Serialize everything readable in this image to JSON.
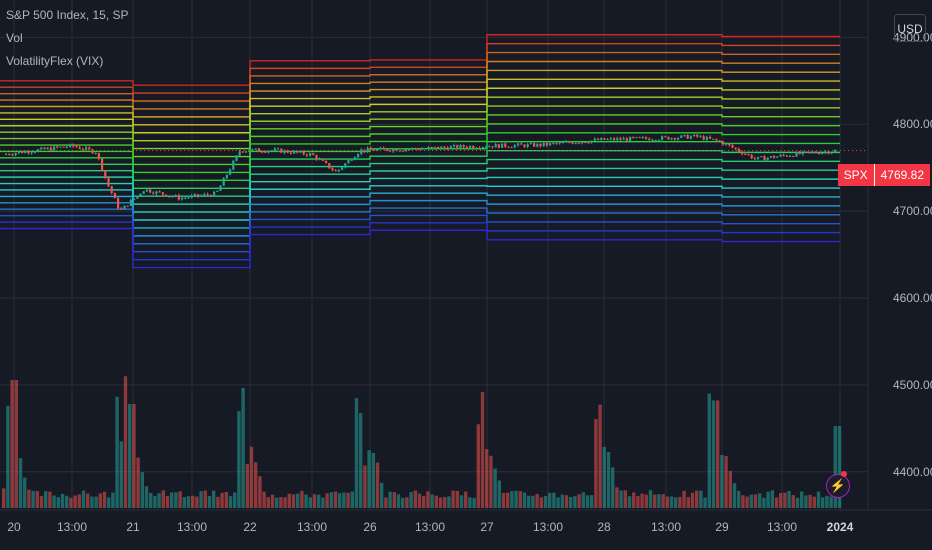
{
  "legend": {
    "symbol": "S&P 500 Index, 15, SP",
    "vol": "Vol",
    "indicator": "VolatilityFlex (VIX)"
  },
  "currency_button": "USD",
  "price_tag": {
    "symbol": "SPX",
    "value": "4769.82"
  },
  "chart_data": {
    "type": "line",
    "title": "S&P 500 Index, 15, SP",
    "y_ticks": [
      "4900.00",
      "4800.00",
      "4700.00",
      "4600.00",
      "4500.00",
      "4400.00"
    ],
    "y_tick_values": [
      4900,
      4800,
      4700,
      4600,
      4500,
      4400
    ],
    "ylim": [
      4356,
      4943
    ],
    "x_ticks": [
      "20",
      "13:00",
      "21",
      "13:00",
      "22",
      "13:00",
      "26",
      "13:00",
      "27",
      "13:00",
      "28",
      "13:00",
      "29",
      "13:00",
      "2024"
    ],
    "grid": true,
    "last_price": 4769.82,
    "sessions": [
      {
        "label": "20",
        "center": 4765,
        "half_width": 85
      },
      {
        "label": "21",
        "center": 4740,
        "half_width": 105
      },
      {
        "label": "22",
        "center": 4773,
        "half_width": 100
      },
      {
        "label": "26",
        "center": 4776,
        "half_width": 98
      },
      {
        "label": "27",
        "center": 4785,
        "half_width": 118
      },
      {
        "label": "28",
        "center": 4785,
        "half_width": 118
      },
      {
        "label": "29",
        "center": 4783,
        "half_width": 118
      }
    ],
    "price_path": [
      [
        0,
        4765
      ],
      [
        0.3,
        4770
      ],
      [
        0.6,
        4775
      ],
      [
        0.8,
        4768
      ],
      [
        0.9,
        4730
      ],
      [
        1.0,
        4700
      ],
      [
        1.2,
        4725
      ],
      [
        1.5,
        4715
      ],
      [
        1.8,
        4720
      ],
      [
        2.0,
        4770
      ],
      [
        2.3,
        4770
      ],
      [
        2.6,
        4765
      ],
      [
        2.8,
        4745
      ],
      [
        3.0,
        4770
      ],
      [
        3.5,
        4772
      ],
      [
        4.0,
        4775
      ],
      [
        4.5,
        4776
      ],
      [
        5.0,
        4782
      ],
      [
        5.5,
        4784
      ],
      [
        5.8,
        4786
      ],
      [
        6.0,
        4780
      ],
      [
        6.3,
        4760
      ],
      [
        6.6,
        4765
      ],
      [
        7.0,
        4770
      ]
    ],
    "volume_pattern": "daily spike at session open, high bars at end of each day",
    "colors": {
      "up": "#26a69a",
      "down": "#ef5350",
      "grid": "#2a2e39",
      "axis_text": "#b2b5be"
    }
  }
}
